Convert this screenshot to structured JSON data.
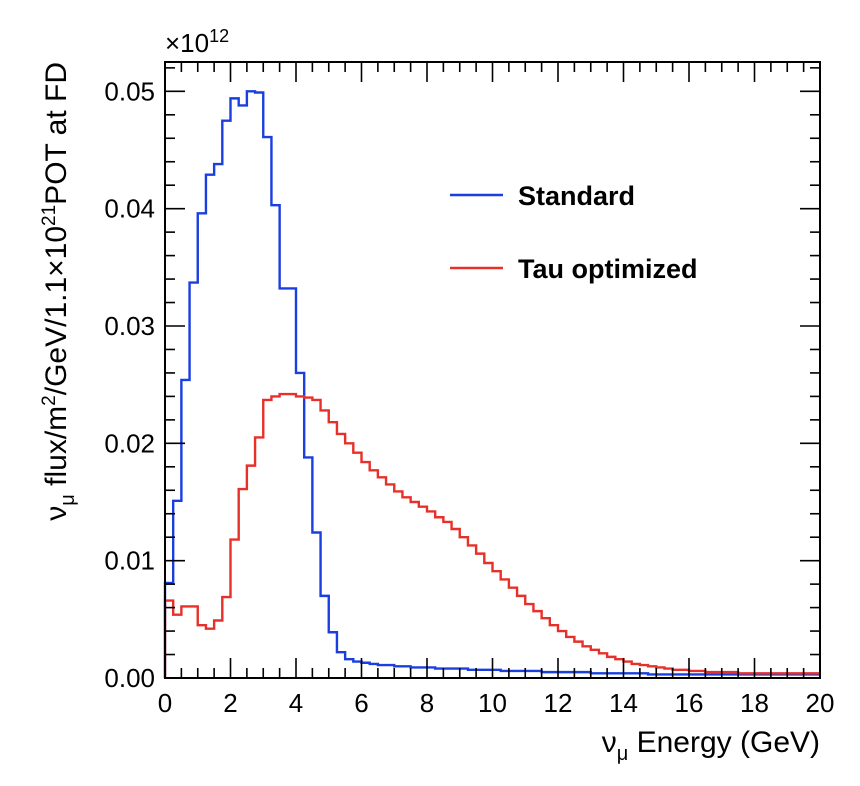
{
  "chart_data": {
    "type": "line",
    "style": "step-histogram",
    "title": "",
    "xlabel": "νμ Energy (GeV)",
    "xlabel_parts": {
      "symbol": "ν",
      "sub": "μ",
      "rest": " Energy (GeV)"
    },
    "ylabel": "νμ flux/m²/GeV/1.1×10²¹POT at FD",
    "ylabel_parts": {
      "symbol": "ν",
      "sub": "μ",
      "text1": " flux/m",
      "sup1": "2",
      "text2": "/GeV/1.1×10",
      "sup2": "21",
      "text3": "POT at FD"
    },
    "y_multiplier": {
      "base": "×10",
      "exp": "12"
    },
    "xlim": [
      0,
      20
    ],
    "ylim": [
      0,
      0.0525
    ],
    "x_ticks": [
      0,
      2,
      4,
      6,
      8,
      10,
      12,
      14,
      16,
      18,
      20
    ],
    "x_tick_labels": [
      "0",
      "2",
      "4",
      "6",
      "8",
      "10",
      "12",
      "14",
      "16",
      "18",
      "20"
    ],
    "y_ticks": [
      0,
      0.01,
      0.02,
      0.03,
      0.04,
      0.05
    ],
    "y_tick_labels": [
      "0.00",
      "0.01",
      "0.02",
      "0.03",
      "0.04",
      "0.05"
    ],
    "grid": false,
    "legend_position": "top-right",
    "bin_width": 0.25,
    "series": [
      {
        "name": "Standard",
        "color": "#1a3fe0",
        "values": [
          0.0081,
          0.0151,
          0.0254,
          0.0337,
          0.0396,
          0.0429,
          0.0438,
          0.0475,
          0.0494,
          0.0488,
          0.05,
          0.0499,
          0.0461,
          0.0403,
          0.0332,
          0.0332,
          0.026,
          0.0188,
          0.0124,
          0.007,
          0.0039,
          0.0022,
          0.0016,
          0.0014,
          0.0013,
          0.0012,
          0.0011,
          0.0011,
          0.001,
          0.001,
          0.0009,
          0.0009,
          0.0009,
          0.0008,
          0.0008,
          0.0008,
          0.0008,
          0.0007,
          0.0007,
          0.0007,
          0.0007,
          0.0006,
          0.0006,
          0.0006,
          0.0006,
          0.0006,
          0.0005,
          0.0005,
          0.0005,
          0.0005,
          0.0005,
          0.0005,
          0.0004,
          0.0004,
          0.0004,
          0.0004,
          0.0004,
          0.0004,
          0.0004,
          0.0003,
          0.0003,
          0.0003,
          0.0003,
          0.0003,
          0.0003,
          0.0003,
          0.0003,
          0.0003,
          0.0003,
          0.0003,
          0.0003,
          0.0003,
          0.0003,
          0.0003,
          0.0003,
          0.0003,
          0.0003,
          0.0003,
          0.0003,
          0.0003
        ]
      },
      {
        "name": "Tau optimized",
        "color": "#e8302a",
        "values": [
          0.0066,
          0.0054,
          0.0061,
          0.0061,
          0.0045,
          0.0042,
          0.0049,
          0.0069,
          0.0118,
          0.0161,
          0.0181,
          0.0205,
          0.0237,
          0.024,
          0.0242,
          0.0242,
          0.024,
          0.0239,
          0.0237,
          0.0228,
          0.0218,
          0.0208,
          0.02,
          0.0192,
          0.0184,
          0.0177,
          0.0171,
          0.0165,
          0.0159,
          0.0154,
          0.015,
          0.0146,
          0.0142,
          0.0137,
          0.0133,
          0.0127,
          0.012,
          0.0113,
          0.0106,
          0.0098,
          0.0091,
          0.0084,
          0.0077,
          0.007,
          0.0063,
          0.0057,
          0.0051,
          0.0045,
          0.004,
          0.0035,
          0.0031,
          0.0027,
          0.0024,
          0.0021,
          0.0018,
          0.0016,
          0.0014,
          0.0012,
          0.0011,
          0.001,
          0.0009,
          0.0008,
          0.0007,
          0.0007,
          0.0006,
          0.0006,
          0.0005,
          0.0005,
          0.0005,
          0.0005,
          0.0004,
          0.0004,
          0.0004,
          0.0004,
          0.0004,
          0.0004,
          0.0004,
          0.0004,
          0.0004,
          0.0004
        ]
      }
    ]
  }
}
